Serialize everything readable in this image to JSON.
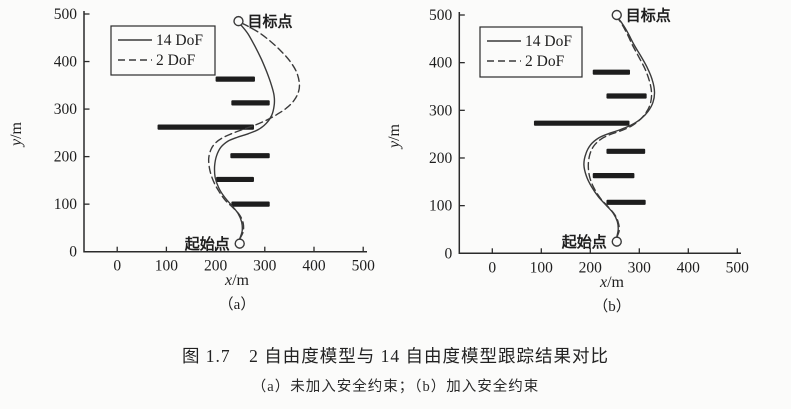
{
  "figure": {
    "caption_title": "图 1.7　2 自由度模型与 14 自由度模型跟踪结果对比",
    "caption_sub": "（a）未加入安全约束；（b）加入安全约束"
  },
  "colors": {
    "curve": "#3a3a3a",
    "axis": "#2b2b2b",
    "obstacle": "#1d1d1d",
    "text": "#1e1e1e"
  },
  "chart_data": [
    {
      "type": "line",
      "sublabel": "（a）",
      "xlabel": "x/m",
      "ylabel": "y/m",
      "xlim": [
        -65,
        515
      ],
      "ylim": [
        0,
        505
      ],
      "x_ticks": [
        0,
        100,
        200,
        300,
        400,
        500
      ],
      "y_ticks": [
        0,
        100,
        200,
        300,
        400,
        500
      ],
      "grid": false,
      "legend_position": "upper-left",
      "legend": [
        {
          "label": "14 DoF",
          "style": "solid"
        },
        {
          "label": "2 DoF",
          "style": "dashed"
        }
      ],
      "markers": [
        {
          "label": "目标点",
          "x": 246.5,
          "y": 485,
          "side": "right"
        },
        {
          "label": "起始点",
          "x": 249,
          "y": 17,
          "side": "left"
        }
      ],
      "obstacles": [
        {
          "x1": 200,
          "x2": 280,
          "y": 363
        },
        {
          "x1": 232,
          "x2": 310,
          "y": 313
        },
        {
          "x1": 82,
          "x2": 278,
          "y": 262
        },
        {
          "x1": 230,
          "x2": 310,
          "y": 202
        },
        {
          "x1": 201,
          "x2": 278,
          "y": 152
        },
        {
          "x1": 232,
          "x2": 310,
          "y": 100
        }
      ],
      "series": [
        {
          "name": "14 DoF",
          "style": "solid",
          "points": [
            [
              249,
              27
            ],
            [
              254,
              44
            ],
            [
              253,
              62
            ],
            [
              246,
              80
            ],
            [
              233,
              97
            ],
            [
              218,
              115
            ],
            [
              206,
              135
            ],
            [
              199,
              157
            ],
            [
              198,
              180
            ],
            [
              202,
              202
            ],
            [
              211,
              220
            ],
            [
              226,
              233
            ],
            [
              245,
              241
            ],
            [
              266,
              248
            ],
            [
              287,
              257
            ],
            [
              303,
              270
            ],
            [
              314,
              287
            ],
            [
              319,
              307
            ],
            [
              319,
              328
            ],
            [
              313,
              352
            ],
            [
              304,
              378
            ],
            [
              293,
              405
            ],
            [
              280,
              432
            ],
            [
              266,
              458
            ],
            [
              254,
              474
            ],
            [
              248,
              480
            ]
          ]
        },
        {
          "name": "2 DoF",
          "style": "dashed",
          "points": [
            [
              249,
              27
            ],
            [
              256,
              42
            ],
            [
              256,
              60
            ],
            [
              249,
              77
            ],
            [
              236,
              92
            ],
            [
              220,
              108
            ],
            [
              206,
              128
            ],
            [
              195,
              150
            ],
            [
              188,
              173
            ],
            [
              186,
              196
            ],
            [
              191,
              216
            ],
            [
              201,
              230
            ],
            [
              215,
              240
            ],
            [
              232,
              248
            ],
            [
              252,
              256
            ],
            [
              274,
              264
            ],
            [
              298,
              274
            ],
            [
              322,
              287
            ],
            [
              344,
              302
            ],
            [
              360,
              319
            ],
            [
              369,
              338
            ],
            [
              370,
              357
            ],
            [
              364,
              379
            ],
            [
              351,
              401
            ],
            [
              333,
              422
            ],
            [
              311,
              443
            ],
            [
              288,
              461
            ],
            [
              268,
              473
            ],
            [
              253,
              481
            ]
          ]
        }
      ]
    },
    {
      "type": "line",
      "sublabel": "（b）",
      "xlabel": "x/m",
      "ylabel": "y/m",
      "xlim": [
        -65,
        515
      ],
      "ylim": [
        0,
        505
      ],
      "x_ticks": [
        0,
        100,
        200,
        300,
        400,
        500
      ],
      "y_ticks": [
        0,
        100,
        200,
        300,
        400,
        500
      ],
      "grid": false,
      "legend_position": "upper-left",
      "legend": [
        {
          "label": "14 DoF",
          "style": "solid"
        },
        {
          "label": "2 DoF",
          "style": "dashed"
        }
      ],
      "markers": [
        {
          "label": "目标点",
          "x": 254,
          "y": 500,
          "side": "right"
        },
        {
          "label": "起始点",
          "x": 254,
          "y": 24.5,
          "side": "left"
        }
      ],
      "obstacles": [
        {
          "x1": 205,
          "x2": 281,
          "y": 380
        },
        {
          "x1": 233,
          "x2": 315,
          "y": 330
        },
        {
          "x1": 85,
          "x2": 280,
          "y": 273
        },
        {
          "x1": 233,
          "x2": 312,
          "y": 214
        },
        {
          "x1": 205,
          "x2": 290,
          "y": 163
        },
        {
          "x1": 233,
          "x2": 313,
          "y": 107
        }
      ],
      "series": [
        {
          "name": "14 DoF",
          "style": "solid",
          "points": [
            [
              254,
              34
            ],
            [
              257,
              50
            ],
            [
              255,
              67
            ],
            [
              247,
              84
            ],
            [
              233,
              100
            ],
            [
              217,
              118
            ],
            [
              203,
              139
            ],
            [
              192,
              162
            ],
            [
              187,
              186
            ],
            [
              191,
              209
            ],
            [
              201,
              228
            ],
            [
              217,
              242
            ],
            [
              237,
              251
            ],
            [
              260,
              259
            ],
            [
              283,
              269
            ],
            [
              303,
              282
            ],
            [
              318,
              298
            ],
            [
              328,
              317
            ],
            [
              331,
              338
            ],
            [
              327,
              362
            ],
            [
              317,
              388
            ],
            [
              303,
              414
            ],
            [
              289,
              438
            ],
            [
              277,
              462
            ],
            [
              266,
              481
            ],
            [
              257,
              493
            ]
          ]
        },
        {
          "name": "2 DoF",
          "style": "dashed",
          "points": [
            [
              254,
              34
            ],
            [
              259,
              48
            ],
            [
              257,
              65
            ],
            [
              250,
              81
            ],
            [
              237,
              97
            ],
            [
              221,
              115
            ],
            [
              208,
              136
            ],
            [
              199,
              159
            ],
            [
              196,
              184
            ],
            [
              199,
              207
            ],
            [
              207,
              225
            ],
            [
              221,
              239
            ],
            [
              240,
              249
            ],
            [
              262,
              257
            ],
            [
              284,
              267
            ],
            [
              302,
              281
            ],
            [
              315,
              297
            ],
            [
              323,
              316
            ],
            [
              325,
              337
            ],
            [
              321,
              360
            ],
            [
              312,
              386
            ],
            [
              299,
              412
            ],
            [
              286,
              437
            ],
            [
              275,
              461
            ],
            [
              265,
              480
            ],
            [
              257,
              492
            ]
          ]
        }
      ]
    }
  ]
}
